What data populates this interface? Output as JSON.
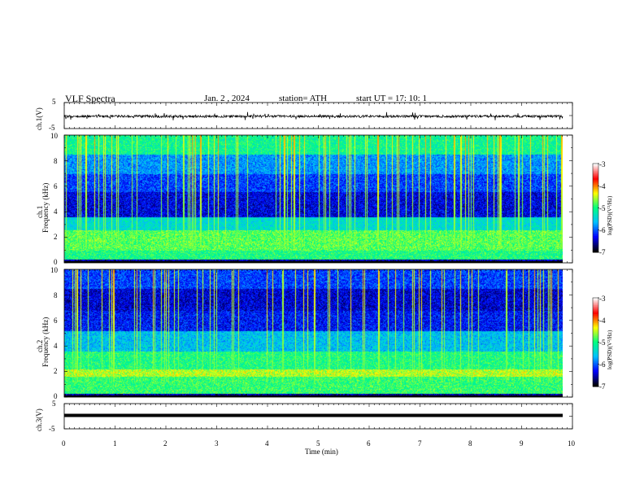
{
  "header": {
    "title": "VLF  Spectra",
    "date": "Jan. 2  , 2024",
    "station": "station= ATH",
    "start_ut": "start  UT  =    17: 10: 1"
  },
  "chart_data": [
    {
      "type": "line",
      "id": "ch1-waveform",
      "ylabel": "ch.1(V)",
      "y_ticks": [
        "5",
        "-5"
      ],
      "ylim": [
        -5,
        5
      ],
      "xlim": [
        0,
        10
      ],
      "description_level_v": -0.3
    },
    {
      "type": "heatmap",
      "id": "ch1-spectrogram",
      "ylabel_line1": "ch.1",
      "ylabel_line2": "Frequency  (kHz)",
      "y_ticks": [
        "0",
        "2",
        "4",
        "6",
        "8",
        "10"
      ],
      "ylim": [
        0,
        10
      ],
      "xlim": [
        0,
        9.8
      ],
      "colorbar": {
        "label": "log(PSD)(V²/Hz)",
        "ticks": [
          "-3",
          "-4",
          "-5",
          "-6",
          "-7"
        ],
        "range": [
          -7,
          -3
        ]
      }
    },
    {
      "type": "heatmap",
      "id": "ch2-spectrogram",
      "ylabel_line1": "ch.2",
      "ylabel_line2": "Frequency  (kHz)",
      "y_ticks": [
        "0",
        "2",
        "4",
        "6",
        "8",
        "10"
      ],
      "ylim": [
        0,
        10
      ],
      "xlim": [
        0,
        9.8
      ],
      "colorbar": {
        "label": "log(PSD)(V²/Hz)",
        "ticks": [
          "-3",
          "-4",
          "-5",
          "-6",
          "-7"
        ],
        "range": [
          -7,
          -3
        ]
      }
    },
    {
      "type": "line",
      "id": "ch3-waveform",
      "ylabel": "ch.3(V)",
      "y_ticks": [
        "5",
        "-5"
      ],
      "ylim": [
        -5,
        5
      ],
      "xlim": [
        0,
        10
      ],
      "level_v": 0
    }
  ],
  "x_axis": {
    "label": "Time  (min)",
    "ticks": [
      "0",
      "1",
      "2",
      "3",
      "4",
      "5",
      "6",
      "7",
      "8",
      "9",
      "10"
    ]
  },
  "colors": {
    "colormap": [
      "#000000",
      "#0000ff",
      "#00c0ff",
      "#00ff80",
      "#ffff00",
      "#ff0000",
      "#ffffff"
    ]
  }
}
